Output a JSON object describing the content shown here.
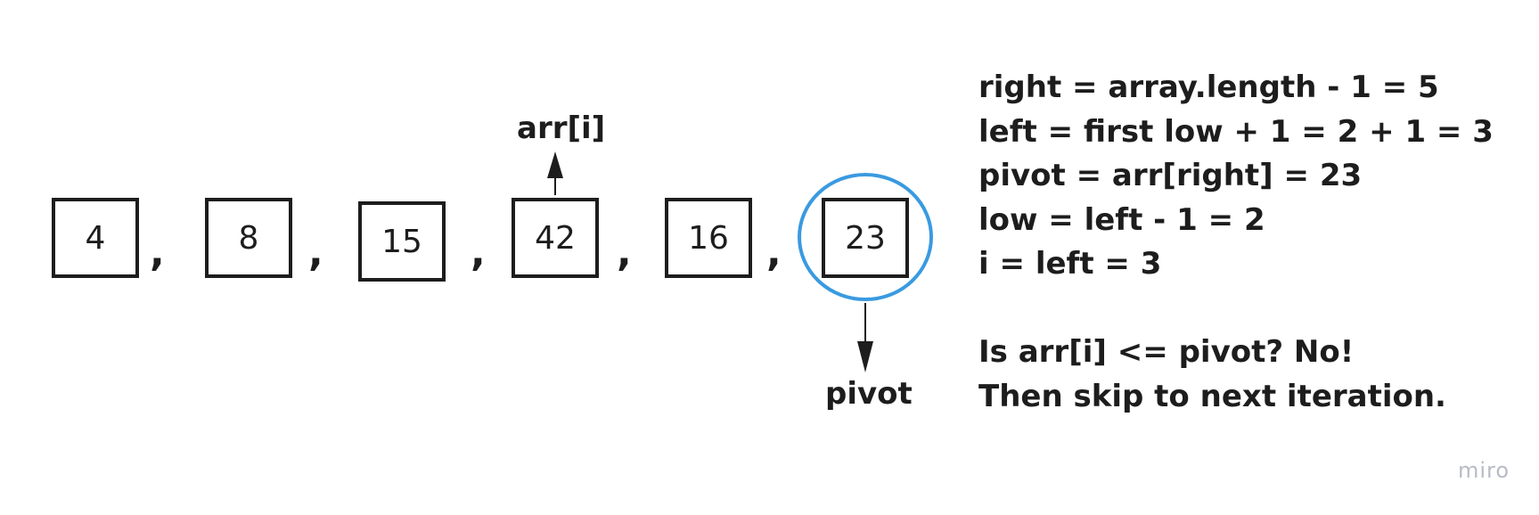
{
  "array": {
    "values": [
      "4",
      "8",
      "15",
      "42",
      "16",
      "23"
    ],
    "separator": ","
  },
  "pointer_label": "arr[i]",
  "pivot_label": "pivot",
  "notes": {
    "lines": [
      "right = array.length - 1 = 5",
      "left = first low + 1 = 2 + 1 = 3",
      "pivot = arr[right] = 23",
      "low = left - 1 = 2",
      "i = left = 3"
    ],
    "question": "Is arr[i] <= pivot? No!",
    "conclusion": "Then skip to next iteration."
  },
  "watermark": "miro",
  "colors": {
    "ink": "#1d1d1d",
    "pivot_circle": "#3a9ae0",
    "watermark": "#b8bcc6"
  }
}
